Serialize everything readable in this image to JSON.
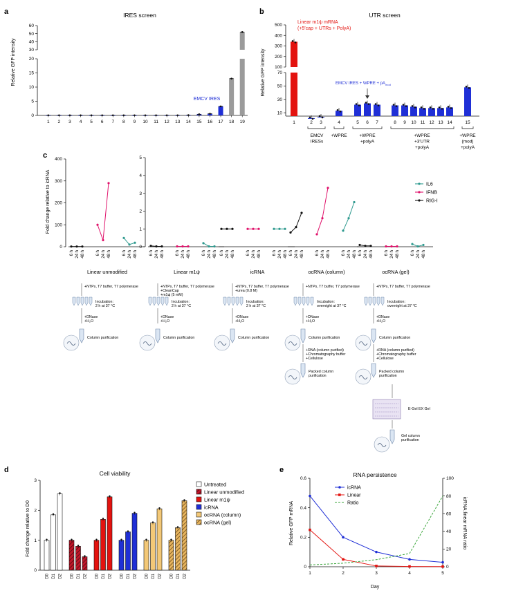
{
  "panel_labels": {
    "a": "a",
    "b": "b",
    "c": "c",
    "d": "d",
    "e": "e"
  },
  "colors": {
    "blue": "#1f2fd6",
    "red": "#e3130f",
    "gray": "#9b9b9b",
    "teal": "#2f9a8f",
    "magenta": "#e0126b",
    "black": "#111111",
    "orange": "#f3c877",
    "green": "#3aa63a"
  },
  "panel_a": {
    "chart_data": {
      "type": "bar",
      "title": "IRES screen",
      "ylabel": "Relative GFP intensity",
      "categories": [
        "1",
        "2",
        "3",
        "4",
        "5",
        "6",
        "7",
        "8",
        "9",
        "10",
        "11",
        "12",
        "13",
        "14",
        "15",
        "16",
        "17",
        "18",
        "19"
      ],
      "values": [
        0.05,
        0.05,
        0.05,
        0.05,
        0.05,
        0.05,
        0.05,
        0.05,
        0.05,
        0.05,
        0.05,
        0.05,
        0.05,
        0.1,
        0.4,
        0.6,
        3.2,
        13,
        52
      ],
      "bar_colors": [
        "blue",
        "blue",
        "blue",
        "blue",
        "blue",
        "blue",
        "blue",
        "blue",
        "blue",
        "blue",
        "blue",
        "blue",
        "blue",
        "blue",
        "blue",
        "blue",
        "blue",
        "gray",
        "gray"
      ],
      "y_ticks": [
        "0",
        "5",
        "10",
        "15",
        "20",
        "30",
        "40",
        "50",
        "60"
      ],
      "annotation": "EMCV IRES"
    }
  },
  "panel_b": {
    "chart_data": {
      "type": "bar",
      "title": "UTR screen",
      "ylabel": "Relative GFP intensity",
      "categories": [
        "1",
        "2",
        "3",
        "4",
        "5",
        "6",
        "7",
        "8",
        "9",
        "10",
        "11",
        "12",
        "13",
        "14",
        "15"
      ],
      "values": [
        340,
        2,
        4,
        13,
        22,
        24,
        22,
        21,
        21,
        19,
        17,
        17,
        17,
        18,
        48
      ],
      "bar_colors": [
        "red",
        "blue",
        "blue",
        "blue",
        "blue",
        "blue",
        "blue",
        "blue",
        "blue",
        "blue",
        "blue",
        "blue",
        "blue",
        "blue",
        "blue"
      ],
      "y_ticks": [
        "10",
        "30",
        "50",
        "70",
        "100",
        "200",
        "300",
        "400",
        "500"
      ],
      "annotations": [
        "Linear m1ψ mRNA",
        "(+5′cap + UTRs + PolyA)",
        "EMCV IRES + WPRE + pA",
        "mod"
      ],
      "groups": [
        {
          "label": [
            "EMCV",
            "IRESs"
          ]
        },
        {
          "label": [
            "+WPRE"
          ]
        },
        {
          "label": [
            "+WPRE",
            "+polyA"
          ]
        },
        {
          "label": [
            "+WPRE",
            "+3′UTR",
            "+polyA"
          ]
        },
        {
          "label": [
            "+WPRE",
            "(mod)",
            "+polyA"
          ]
        }
      ]
    }
  },
  "panel_c": {
    "chart_data": {
      "type": "line",
      "ylabel": "Fold change relative to icRNA",
      "x_ticks": [
        "6 h",
        "24 h",
        "48 h"
      ],
      "legend": [
        {
          "name": "IL6",
          "color": "teal"
        },
        {
          "name": "IFNB",
          "color": "magenta"
        },
        {
          "name": "RIG-I",
          "color": "black"
        }
      ],
      "left_axis": {
        "ylim": [
          0,
          400
        ],
        "ticks": [
          "0",
          "100",
          "200",
          "300",
          "400"
        ]
      },
      "right_axis": {
        "ylim": [
          0,
          5
        ],
        "ticks": [
          "0",
          "1",
          "2",
          "3",
          "4",
          "5"
        ]
      },
      "groups": [
        {
          "name": "Linear unmodified",
          "RIG-I": [
            1,
            1,
            1
          ],
          "IFNB": [
            100,
            30,
            290
          ],
          "IL6": [
            40,
            10,
            18
          ]
        },
        {
          "name": "Linear m1ψ",
          "RIG-I": [
            0.05,
            0.02,
            0.02
          ],
          "IFNB": [
            0.02,
            0.02,
            0.02
          ],
          "IL6": [
            0.2,
            0.02,
            0.02
          ]
        },
        {
          "name": "icRNA",
          "RIG-I": [
            1,
            1,
            1
          ],
          "IFNB": [
            1,
            1,
            1
          ],
          "IL6": [
            1,
            1,
            1
          ]
        },
        {
          "name": "ocRNA (column)",
          "RIG-I": [
            0.8,
            1.1,
            1.9
          ],
          "IFNB": [
            0.7,
            1.6,
            3.3
          ],
          "IL6": [
            0.9,
            1.6,
            2.5
          ]
        },
        {
          "name": "ocRNA (gel)",
          "RIG-I": [
            0.1,
            0.05,
            0.05
          ],
          "IFNB": [
            0.02,
            0.02,
            0.02
          ],
          "IL6": [
            0.15,
            0.02,
            0.1
          ]
        }
      ]
    }
  },
  "workflow": {
    "col1": [
      "+NTPs, T7 buffer, T7 polymerase",
      "Incubation:",
      "2 h at 37 °C",
      "+DNase",
      "+H₂O",
      "Column purification"
    ],
    "col2": [
      "+NTPs, T7 buffer, T7 polymerase",
      "+CleanCap",
      "+m1ψ (5 mM)",
      "Incubation:",
      "2 h at 37 °C",
      "+DNase",
      "+H₂O",
      "Column purification"
    ],
    "col3": [
      "+NTPs, T7 buffer, T7 polymerase",
      "+urea (0.8 M)",
      "Incubation:",
      "2 h at 37 °C",
      "+DNase",
      "+H₂O",
      "Column purification"
    ],
    "col4": [
      "+NTPs, T7 buffer, T7 polymerase",
      "Incubation:",
      "overnight at 37 °C",
      "+DNase",
      "+H₂O",
      "Column purification",
      "+RNA (column purified)",
      "+Chromatography buffer",
      "+Cellulose",
      "Packed column",
      "purification"
    ],
    "col5": [
      "+NTPs, T7 buffer, T7 polymerase",
      "Incubation:",
      "overnight at 37 °C",
      "+DNase",
      "+H₂O",
      "Column purification",
      "+RNA (column purified)",
      "+Chromatography buffer",
      "+Cellulose",
      "Packed column",
      "purification",
      "E-Gel EX Gel",
      "Gel column",
      "purification"
    ]
  },
  "panel_d": {
    "chart_data": {
      "type": "bar",
      "title": "Cell viability",
      "ylabel": "Fold change relative to D0",
      "ylim": [
        0,
        3
      ],
      "y_ticks": [
        "0",
        "1",
        "2",
        "3"
      ],
      "x_ticks": [
        "D0",
        "D1",
        "D2"
      ],
      "series": [
        {
          "name": "Untreated",
          "values": [
            1,
            1.85,
            2.55
          ],
          "color": "#ffffff",
          "hatch": false
        },
        {
          "name": "Linear unmodified",
          "values": [
            1,
            0.8,
            0.45
          ],
          "color": "#c0152a",
          "hatch": true
        },
        {
          "name": "Linear m1ψ",
          "values": [
            1,
            1.7,
            2.45
          ],
          "color": "#e3130f",
          "hatch": false
        },
        {
          "name": "icRNA",
          "values": [
            1,
            1.28,
            1.9
          ],
          "color": "#1f2fd6",
          "hatch": false
        },
        {
          "name": "ocRNA (column)",
          "values": [
            1,
            1.58,
            2.05
          ],
          "color": "#f3c877",
          "hatch": false
        },
        {
          "name": "ocRNA (gel)",
          "values": [
            1,
            1.42,
            2.32
          ],
          "color": "#e6b45e",
          "hatch": true
        }
      ]
    }
  },
  "panel_e": {
    "chart_data": {
      "type": "line",
      "title": "RNA persistence",
      "xlabel": "Day",
      "ylabel": "Relative GFP mRNA",
      "y2label": "icRNA:linear mRNA ratio",
      "x": [
        1,
        2,
        3,
        4,
        5
      ],
      "ylim": [
        0,
        0.6
      ],
      "y2lim": [
        0,
        100
      ],
      "y_ticks": [
        "0",
        "0.2",
        "0.4",
        "0.6"
      ],
      "y2_ticks": [
        "0",
        "20",
        "40",
        "60",
        "80",
        "100"
      ],
      "series": [
        {
          "name": "icRNA",
          "values": [
            0.48,
            0.2,
            0.1,
            0.05,
            0.03
          ],
          "color": "blue"
        },
        {
          "name": "Linear",
          "values": [
            0.25,
            0.05,
            0.005,
            0.002,
            0.001
          ],
          "color": "red"
        },
        {
          "name": "Ratio",
          "values": [
            2,
            4,
            8,
            15,
            80
          ],
          "color": "green",
          "axis": "right"
        }
      ]
    }
  }
}
